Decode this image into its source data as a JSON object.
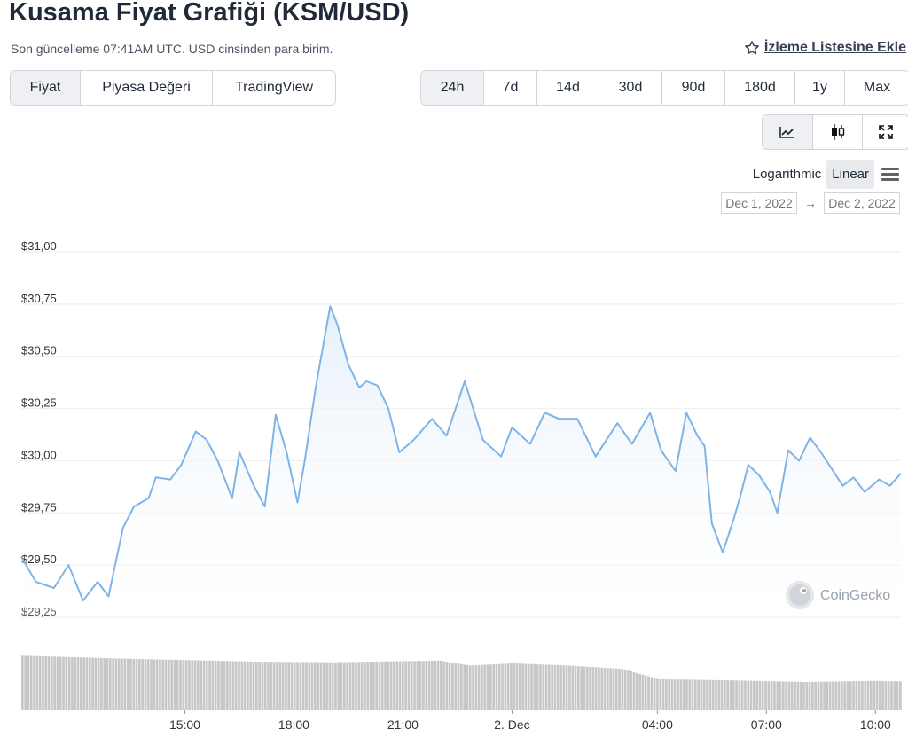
{
  "header": {
    "title": "Kusama Fiyat Grafiği (KSM/USD)",
    "subtitle": "Son güncelleme 07:41AM UTC. USD cinsinden para birim.",
    "watchlist_label": "İzleme Listesine Ekle"
  },
  "type_tabs": [
    "Fiyat",
    "Piyasa Değeri",
    "TradingView"
  ],
  "type_active": "Fiyat",
  "range_tabs": [
    "24h",
    "7d",
    "14d",
    "30d",
    "90d",
    "180d",
    "1y",
    "Max"
  ],
  "range_active": "24h",
  "view_tabs": [
    {
      "name": "line-chart",
      "icon": "line-chart-icon"
    },
    {
      "name": "candlestick-chart",
      "icon": "candlestick-icon"
    },
    {
      "name": "fullscreen",
      "icon": "expand-icon"
    }
  ],
  "scale": {
    "options": [
      "Logarithmic",
      "Linear"
    ],
    "active": "Linear"
  },
  "date_range": {
    "from": "Dec 1, 2022",
    "arrow": "→",
    "to": "Dec 2, 2022"
  },
  "watermark": "CoinGecko",
  "colors": {
    "line": "#7eb4e8",
    "fill_top": "#e3eef9",
    "volume": "#c7c7c7",
    "grid": "#eeeeee"
  },
  "chart_data": {
    "type": "line",
    "y_ticks": [
      "$31,00",
      "$30,75",
      "$30,50",
      "$30,25",
      "$30,00",
      "$29,75",
      "$29,50",
      "$29,25"
    ],
    "y_tick_values": [
      31.0,
      30.75,
      30.5,
      30.25,
      30.0,
      29.75,
      29.5,
      29.25
    ],
    "ylim": [
      29.25,
      31.0
    ],
    "x_ticks": [
      "15:00",
      "18:00",
      "21:00",
      "2. Dec",
      "04:00",
      "07:00",
      "10:00"
    ],
    "x_tick_hours": [
      15,
      18,
      21,
      24,
      28,
      31,
      34
    ],
    "xlim_hours": [
      10.5,
      34.7
    ],
    "series": [
      {
        "x_hours": [
          10.5,
          10.9,
          11.4,
          11.8,
          12.2,
          12.6,
          12.9,
          13.3,
          13.6,
          14.0,
          14.2,
          14.6,
          14.9,
          15.3,
          15.6,
          15.9,
          16.3,
          16.5,
          16.9,
          17.2,
          17.5,
          17.8,
          18.1,
          18.3,
          18.6,
          19.0,
          19.2,
          19.5,
          19.8,
          20.0,
          20.3,
          20.6,
          20.9,
          21.3,
          21.8,
          22.2,
          22.7,
          23.2,
          23.7,
          24.0,
          24.5,
          24.9,
          25.3,
          25.8,
          26.3,
          26.9,
          27.3,
          27.8,
          28.1,
          28.5,
          28.8,
          29.1,
          29.3,
          29.5,
          29.8,
          30.1,
          30.3,
          30.5,
          30.8,
          31.1,
          31.3,
          31.6,
          31.9,
          32.2,
          32.5,
          32.8,
          33.1,
          33.4,
          33.7,
          34.1,
          34.4,
          34.7
        ],
        "values": [
          29.54,
          29.42,
          29.39,
          29.5,
          29.33,
          29.42,
          29.35,
          29.68,
          29.78,
          29.82,
          29.92,
          29.91,
          29.98,
          30.14,
          30.1,
          30.0,
          29.82,
          30.04,
          29.88,
          29.78,
          30.22,
          30.04,
          29.8,
          30.0,
          30.35,
          30.74,
          30.65,
          30.46,
          30.35,
          30.38,
          30.36,
          30.25,
          30.04,
          30.1,
          30.2,
          30.12,
          30.38,
          30.1,
          30.02,
          30.16,
          30.08,
          30.23,
          30.2,
          30.2,
          30.02,
          30.18,
          30.08,
          30.23,
          30.05,
          29.95,
          30.23,
          30.12,
          30.07,
          29.7,
          29.56,
          29.72,
          29.84,
          29.98,
          29.93,
          29.85,
          29.75,
          30.05,
          30.0,
          30.11,
          30.04,
          29.96,
          29.88,
          29.92,
          29.85,
          29.91,
          29.88,
          29.94
        ]
      }
    ],
    "volume": {
      "x_hours": [
        10.5,
        13.0,
        15.0,
        17.0,
        19.0,
        21.0,
        22.0,
        22.8,
        24.0,
        25.5,
        27.0,
        28.0,
        30.0,
        32.0,
        34.0,
        34.7
      ],
      "values": [
        0.98,
        0.93,
        0.9,
        0.87,
        0.86,
        0.88,
        0.89,
        0.8,
        0.84,
        0.8,
        0.74,
        0.55,
        0.53,
        0.5,
        0.52,
        0.51
      ]
    }
  }
}
